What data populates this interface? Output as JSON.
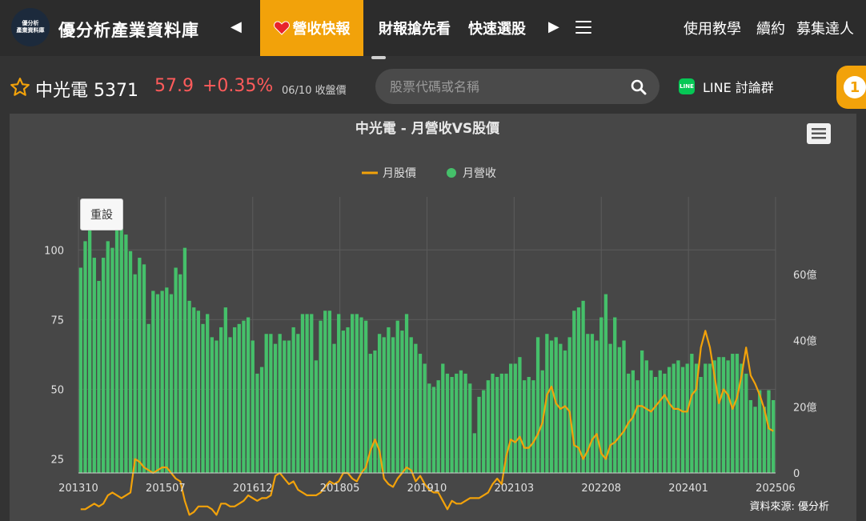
{
  "header": {
    "logo_lines": [
      "優分析",
      "產業資料庫"
    ],
    "brand": "優分析產業資料庫",
    "tabs": [
      {
        "label": "營收快報",
        "active": true
      },
      {
        "label": "財報搶先看",
        "active": false
      },
      {
        "label": "快速選股",
        "active": false
      }
    ],
    "right_nav": [
      "使用教學",
      "續約",
      "募集達人"
    ]
  },
  "stock": {
    "name_code": "中光電 5371",
    "price": "57.9",
    "change": "+0.35%",
    "date_label": "06/10 收盤價"
  },
  "search": {
    "placeholder": "股票代碼或名稱"
  },
  "line_link": {
    "badge": "LINE",
    "label": "LINE 討論群"
  },
  "notification": {
    "count": "1"
  },
  "chart": {
    "reset_label": "重設",
    "source": "資料來源: 優分析"
  },
  "chart_data": {
    "type": "bar",
    "title": "中光電 - 月營收VS股價",
    "series_names": {
      "price": "月股價",
      "revenue": "月營收"
    },
    "colors": {
      "revenue": "#45c06a",
      "price": "#f2a20a",
      "text": "#e0e0e0",
      "grid": "#5b5b5b",
      "background": "#474747"
    },
    "x_tick_labels": [
      "201310",
      "201507",
      "201612",
      "201805",
      "201910",
      "202103",
      "202208",
      "202401",
      "202506"
    ],
    "y_left": {
      "ticks": [
        "25",
        "50",
        "75",
        "100"
      ],
      "range": [
        20,
        115
      ]
    },
    "y_right": {
      "ticks": [
        "0",
        "20億",
        "40億",
        "60億"
      ],
      "range": [
        0,
        80
      ]
    },
    "x": {
      "start": "2013-10",
      "end": "2025-06"
    },
    "revenue_yi": [
      62,
      70,
      75,
      65,
      58,
      65,
      70,
      68,
      75,
      78,
      72,
      67,
      60,
      65,
      63,
      45,
      55,
      54,
      55,
      56,
      54,
      62,
      60,
      68,
      52,
      50,
      49,
      45,
      48,
      41,
      40,
      44,
      50,
      41,
      44,
      45,
      46,
      47,
      40,
      30,
      32,
      42,
      42,
      39,
      42,
      40,
      40,
      44,
      42,
      48,
      48,
      48,
      34,
      46,
      49,
      49,
      39,
      48,
      43,
      44,
      48,
      48,
      47,
      46,
      36,
      37,
      42,
      41,
      44,
      41,
      46,
      43,
      48,
      41,
      39,
      36,
      33,
      27,
      26,
      28,
      33,
      30,
      29,
      30,
      31,
      30,
      27,
      12,
      23,
      25,
      28,
      30,
      29,
      30,
      30,
      33,
      33,
      35,
      28,
      29,
      28,
      41,
      31,
      42,
      40,
      41,
      39,
      37,
      41,
      49,
      50,
      52,
      42,
      42,
      40,
      47,
      54,
      39,
      47,
      38,
      40,
      30,
      31,
      28,
      37,
      34,
      31,
      29,
      31,
      30,
      32,
      33,
      34,
      32,
      33,
      36,
      33,
      29,
      33,
      33,
      34,
      35,
      35,
      34,
      36,
      36,
      33,
      30,
      22,
      20,
      25,
      20,
      25,
      22
    ],
    "price_wan": [
      7,
      7,
      8,
      9,
      8,
      9,
      12,
      13,
      12,
      11,
      12,
      13,
      25,
      24,
      22,
      21,
      20,
      21,
      22,
      22,
      20,
      18,
      17,
      10,
      5,
      6,
      8,
      8,
      8,
      7,
      5,
      9,
      9,
      8,
      8,
      9,
      10,
      12,
      11,
      10,
      11,
      11,
      12,
      19,
      20,
      18,
      16,
      17,
      14,
      13,
      12,
      12,
      12,
      13,
      15,
      17,
      16,
      17,
      20,
      20,
      18,
      17,
      20,
      22,
      28,
      32,
      28,
      18,
      16,
      15,
      18,
      20,
      22,
      21,
      17,
      19,
      16,
      14,
      13,
      13,
      10,
      7,
      10,
      9,
      9,
      10,
      11,
      11,
      11,
      12,
      13,
      16,
      18,
      16,
      26,
      32,
      31,
      33,
      29,
      29,
      31,
      34,
      38,
      48,
      51,
      45,
      43,
      44,
      42,
      30,
      29,
      25,
      28,
      32,
      34,
      27,
      25,
      30,
      31,
      33,
      35,
      38,
      40,
      44,
      44,
      43,
      42,
      44,
      46,
      48,
      45,
      43,
      43,
      42,
      42,
      48,
      50,
      65,
      71,
      65,
      55,
      45,
      50,
      48,
      43,
      47,
      55,
      65,
      55,
      52,
      48,
      43,
      36,
      35
    ]
  }
}
